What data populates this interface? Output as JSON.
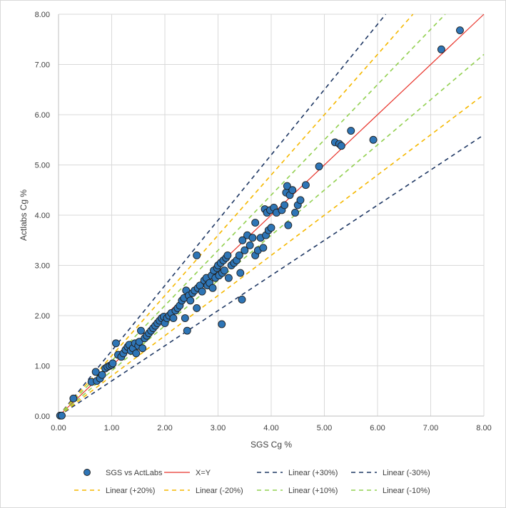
{
  "chart_data": {
    "type": "scatter",
    "title": "",
    "xlabel": "SGS Cg %",
    "ylabel": "Actlabs Cg %",
    "xlim": [
      0,
      8
    ],
    "ylim": [
      0,
      8
    ],
    "xticks": [
      "0.00",
      "1.00",
      "2.00",
      "3.00",
      "4.00",
      "5.00",
      "6.00",
      "7.00",
      "8.00"
    ],
    "yticks": [
      "0.00",
      "1.00",
      "2.00",
      "3.00",
      "4.00",
      "5.00",
      "6.00",
      "7.00",
      "8.00"
    ],
    "grid": true,
    "legend_position": "bottom",
    "colors": {
      "points": "#2e75b6",
      "point_edge": "#1f1f1f",
      "xy": "#e8332a",
      "p30": "#1f3864",
      "p20": "#f5b800",
      "p10": "#92d050",
      "grid": "#d9d9d9",
      "axis": "#bfbfbf"
    },
    "series": [
      {
        "name": "SGS vs ActLabs",
        "kind": "scatter",
        "points": [
          [
            0.03,
            0.01
          ],
          [
            0.06,
            0.01
          ],
          [
            0.28,
            0.35
          ],
          [
            0.62,
            0.68
          ],
          [
            0.7,
            0.88
          ],
          [
            0.72,
            0.7
          ],
          [
            0.78,
            0.75
          ],
          [
            0.82,
            0.82
          ],
          [
            0.88,
            0.95
          ],
          [
            0.92,
            0.98
          ],
          [
            0.96,
            1.0
          ],
          [
            1.0,
            1.02
          ],
          [
            1.02,
            1.05
          ],
          [
            1.08,
            1.45
          ],
          [
            1.12,
            1.22
          ],
          [
            1.18,
            1.18
          ],
          [
            1.22,
            1.25
          ],
          [
            1.26,
            1.32
          ],
          [
            1.3,
            1.38
          ],
          [
            1.33,
            1.42
          ],
          [
            1.36,
            1.3
          ],
          [
            1.4,
            1.35
          ],
          [
            1.44,
            1.45
          ],
          [
            1.46,
            1.25
          ],
          [
            1.5,
            1.4
          ],
          [
            1.52,
            1.48
          ],
          [
            1.55,
            1.7
          ],
          [
            1.58,
            1.35
          ],
          [
            1.62,
            1.55
          ],
          [
            1.66,
            1.6
          ],
          [
            1.7,
            1.65
          ],
          [
            1.74,
            1.7
          ],
          [
            1.78,
            1.75
          ],
          [
            1.82,
            1.8
          ],
          [
            1.86,
            1.85
          ],
          [
            1.9,
            1.9
          ],
          [
            1.94,
            1.95
          ],
          [
            1.98,
            1.98
          ],
          [
            2.0,
            1.85
          ],
          [
            2.04,
            1.95
          ],
          [
            2.08,
            2.0
          ],
          [
            2.12,
            2.05
          ],
          [
            2.16,
            1.95
          ],
          [
            2.2,
            2.1
          ],
          [
            2.24,
            2.15
          ],
          [
            2.28,
            2.2
          ],
          [
            2.32,
            2.3
          ],
          [
            2.36,
            2.35
          ],
          [
            2.38,
            1.95
          ],
          [
            2.4,
            2.5
          ],
          [
            2.42,
            1.7
          ],
          [
            2.45,
            2.4
          ],
          [
            2.48,
            2.3
          ],
          [
            2.52,
            2.45
          ],
          [
            2.56,
            2.5
          ],
          [
            2.6,
            3.2
          ],
          [
            2.6,
            2.15
          ],
          [
            2.62,
            2.55
          ],
          [
            2.66,
            2.6
          ],
          [
            2.7,
            2.48
          ],
          [
            2.74,
            2.7
          ],
          [
            2.78,
            2.75
          ],
          [
            2.8,
            2.6
          ],
          [
            2.84,
            2.65
          ],
          [
            2.88,
            2.8
          ],
          [
            2.9,
            2.55
          ],
          [
            2.92,
            2.9
          ],
          [
            2.95,
            2.75
          ],
          [
            2.98,
            2.95
          ],
          [
            3.0,
            3.0
          ],
          [
            3.02,
            2.8
          ],
          [
            3.05,
            3.05
          ],
          [
            3.07,
            1.83
          ],
          [
            3.08,
            2.85
          ],
          [
            3.1,
            3.1
          ],
          [
            3.12,
            2.9
          ],
          [
            3.15,
            3.15
          ],
          [
            3.18,
            3.2
          ],
          [
            3.2,
            2.75
          ],
          [
            3.25,
            3.0
          ],
          [
            3.3,
            3.05
          ],
          [
            3.35,
            3.1
          ],
          [
            3.4,
            3.2
          ],
          [
            3.42,
            2.85
          ],
          [
            3.45,
            2.32
          ],
          [
            3.46,
            3.5
          ],
          [
            3.5,
            3.3
          ],
          [
            3.55,
            3.6
          ],
          [
            3.6,
            3.4
          ],
          [
            3.65,
            3.55
          ],
          [
            3.7,
            3.2
          ],
          [
            3.7,
            3.85
          ],
          [
            3.75,
            3.3
          ],
          [
            3.8,
            3.55
          ],
          [
            3.85,
            3.35
          ],
          [
            3.88,
            4.12
          ],
          [
            3.9,
            3.6
          ],
          [
            3.92,
            4.05
          ],
          [
            3.95,
            3.7
          ],
          [
            3.98,
            4.1
          ],
          [
            4.0,
            3.75
          ],
          [
            4.05,
            4.15
          ],
          [
            4.1,
            4.05
          ],
          [
            4.2,
            4.1
          ],
          [
            4.25,
            4.2
          ],
          [
            4.28,
            4.45
          ],
          [
            4.3,
            4.58
          ],
          [
            4.32,
            3.8
          ],
          [
            4.35,
            4.4
          ],
          [
            4.4,
            4.5
          ],
          [
            4.45,
            4.05
          ],
          [
            4.5,
            4.2
          ],
          [
            4.55,
            4.3
          ],
          [
            4.65,
            4.6
          ],
          [
            4.9,
            4.97
          ],
          [
            5.2,
            5.45
          ],
          [
            5.28,
            5.42
          ],
          [
            5.32,
            5.38
          ],
          [
            5.5,
            5.68
          ],
          [
            5.92,
            5.5
          ],
          [
            7.2,
            7.3
          ],
          [
            7.55,
            7.68
          ]
        ]
      },
      {
        "name": "X=Y",
        "kind": "line",
        "slope": 1.0
      },
      {
        "name": "Linear (+30%)",
        "kind": "dashed",
        "slope": 1.3
      },
      {
        "name": "Linear (-30%)",
        "kind": "dashed",
        "slope": 0.7
      },
      {
        "name": "Linear (+20%)",
        "kind": "dashed",
        "slope": 1.2
      },
      {
        "name": "Linear (-20%)",
        "kind": "dashed",
        "slope": 0.8
      },
      {
        "name": "Linear (+10%)",
        "kind": "dashed",
        "slope": 1.1
      },
      {
        "name": "Linear (-10%)",
        "kind": "dashed",
        "slope": 0.9
      }
    ]
  }
}
